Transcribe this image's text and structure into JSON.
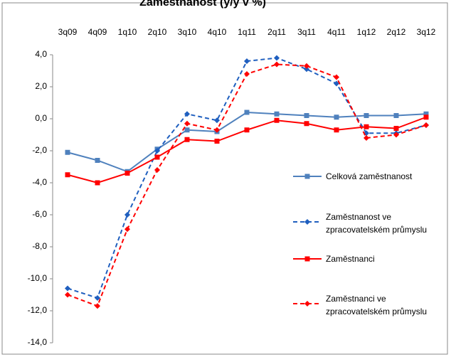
{
  "chart_data": {
    "type": "line",
    "title": "Zaměstnanost (y/y v %)",
    "categories": [
      "3q09",
      "4q09",
      "1q10",
      "2q10",
      "3q10",
      "4q10",
      "1q11",
      "2q11",
      "3q11",
      "4q11",
      "1q12",
      "2q12",
      "3q12"
    ],
    "ylim": [
      -14,
      4
    ],
    "yticks": [
      {
        "value": -14,
        "label": "-14,0"
      },
      {
        "value": -12,
        "label": "-12,0"
      },
      {
        "value": -10,
        "label": "-10,0"
      },
      {
        "value": -8,
        "label": "-8,0"
      },
      {
        "value": -6,
        "label": "-6,0"
      },
      {
        "value": -4,
        "label": "-4,0"
      },
      {
        "value": -2,
        "label": "-2,0"
      },
      {
        "value": 0,
        "label": "0,0"
      },
      {
        "value": 2,
        "label": "2,0"
      },
      {
        "value": 4,
        "label": "4,0"
      }
    ],
    "series": [
      {
        "name": "Celková zaměstnanost",
        "color": "#4f81bd",
        "dashed": false,
        "marker": "square",
        "values": [
          -2.1,
          -2.6,
          -3.3,
          -1.9,
          -0.7,
          -0.8,
          0.4,
          0.3,
          0.2,
          0.1,
          0.2,
          0.2,
          0.3
        ]
      },
      {
        "name": "Zaměstnanost ve\nzpracovatelském průmyslu",
        "color": "#1f5fbf",
        "dashed": true,
        "marker": "diamond",
        "values": [
          -10.6,
          -11.2,
          -6.0,
          -2.0,
          0.3,
          -0.1,
          3.6,
          3.8,
          3.1,
          2.2,
          -0.9,
          -0.9,
          -0.4
        ]
      },
      {
        "name": "Zaměstnanci",
        "color": "#ff0000",
        "dashed": false,
        "marker": "square",
        "values": [
          -3.5,
          -4.0,
          -3.4,
          -2.4,
          -1.3,
          -1.4,
          -0.7,
          -0.1,
          -0.3,
          -0.7,
          -0.5,
          -0.6,
          0.1
        ]
      },
      {
        "name": "Zaměstnanci ve\nzpracovatelském průmyslu",
        "color": "#ff0000",
        "dashed": true,
        "marker": "diamond",
        "values": [
          -11.0,
          -11.7,
          -6.9,
          -3.2,
          -0.3,
          -0.7,
          2.8,
          3.4,
          3.3,
          2.6,
          -1.2,
          -1.0,
          -0.4
        ]
      }
    ]
  }
}
